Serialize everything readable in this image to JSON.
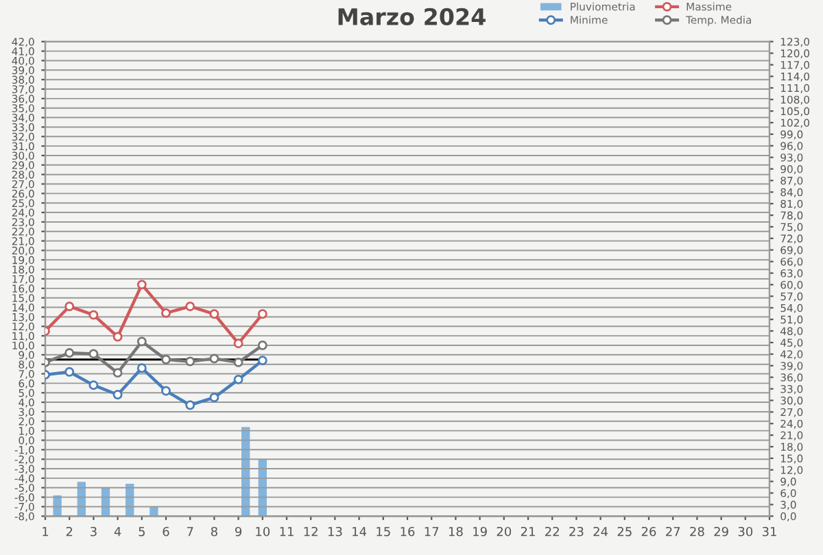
{
  "chart_data": {
    "type": "line",
    "title": "Marzo 2024",
    "x": [
      1,
      2,
      3,
      4,
      5,
      6,
      7,
      8,
      9,
      10
    ],
    "series": [
      {
        "name": "Pluviometria",
        "type": "bar",
        "axis": "y2",
        "color": "#6fa8d8",
        "x": [
          1.5,
          2.5,
          3.5,
          4.5,
          5.5,
          8.1,
          9.3,
          10
        ],
        "values": [
          5.4,
          8.9,
          7.4,
          8.4,
          2.5,
          0.2,
          23.1,
          14.8
        ]
      },
      {
        "name": "Minime",
        "color": "#4a7ebb",
        "values": [
          6.9,
          7.2,
          5.8,
          4.8,
          7.6,
          5.2,
          3.7,
          4.5,
          6.4,
          8.4
        ]
      },
      {
        "name": "Massime",
        "color": "#d05a5a",
        "values": [
          11.5,
          14.1,
          13.2,
          10.9,
          16.4,
          13.4,
          14.1,
          13.3,
          10.2,
          13.3
        ]
      },
      {
        "name": "Temp. Media",
        "color": "#777777",
        "values": [
          8.2,
          9.2,
          9.1,
          7.1,
          10.4,
          8.5,
          8.3,
          8.6,
          8.2,
          10.0
        ]
      }
    ],
    "ref_lines": [
      {
        "axis": "y",
        "value": 8.5,
        "color": "#000000"
      }
    ],
    "marker": "circle",
    "line_style": "solid",
    "grid": "y",
    "legend": "top right",
    "xlim": [
      1,
      31
    ],
    "xticks": [
      1,
      2,
      3,
      4,
      5,
      6,
      7,
      8,
      9,
      10,
      11,
      12,
      13,
      14,
      15,
      16,
      17,
      18,
      19,
      20,
      21,
      22,
      23,
      24,
      25,
      26,
      27,
      28,
      29,
      30,
      31
    ],
    "ylim": [
      -8,
      42
    ],
    "yticks": [
      {
        "value": -8,
        "label": "-8,0"
      },
      {
        "value": -7,
        "label": "-7,0"
      },
      {
        "value": -6,
        "label": "-6,0"
      },
      {
        "value": -5,
        "label": "-5,0"
      },
      {
        "value": -4,
        "label": "-4,0"
      },
      {
        "value": -3,
        "label": "-3,0"
      },
      {
        "value": -2,
        "label": "-2,0"
      },
      {
        "value": -1,
        "label": "-1,0"
      },
      {
        "value": 0,
        "label": "0,0"
      },
      {
        "value": 1,
        "label": "1,0"
      },
      {
        "value": 2,
        "label": "2,0"
      },
      {
        "value": 3,
        "label": "3,0"
      },
      {
        "value": 4,
        "label": "4,0"
      },
      {
        "value": 5,
        "label": "5,0"
      },
      {
        "value": 6,
        "label": "6,0"
      },
      {
        "value": 7,
        "label": "7,0"
      },
      {
        "value": 8,
        "label": "8,0"
      },
      {
        "value": 9,
        "label": "9,0"
      },
      {
        "value": 10,
        "label": "10,0"
      },
      {
        "value": 11,
        "label": "11,0"
      },
      {
        "value": 12,
        "label": "12,0"
      },
      {
        "value": 13,
        "label": "13,0"
      },
      {
        "value": 14,
        "label": "14,0"
      },
      {
        "value": 15,
        "label": "15,0"
      },
      {
        "value": 16,
        "label": "16,0"
      },
      {
        "value": 17,
        "label": "17,0"
      },
      {
        "value": 18,
        "label": "18,0"
      },
      {
        "value": 19,
        "label": "19,0"
      },
      {
        "value": 20,
        "label": "20,0"
      },
      {
        "value": 21,
        "label": "21,0"
      },
      {
        "value": 22,
        "label": "22,0"
      },
      {
        "value": 23,
        "label": "23,0"
      },
      {
        "value": 24,
        "label": "24,0"
      },
      {
        "value": 25,
        "label": "25,0"
      },
      {
        "value": 26,
        "label": "26,0"
      },
      {
        "value": 27,
        "label": "27,0"
      },
      {
        "value": 28,
        "label": "28,0"
      },
      {
        "value": 29,
        "label": "29,0"
      },
      {
        "value": 30,
        "label": "30,0"
      },
      {
        "value": 31,
        "label": "31,0"
      },
      {
        "value": 32,
        "label": "32,0"
      },
      {
        "value": 33,
        "label": "33,0"
      },
      {
        "value": 34,
        "label": "34,0"
      },
      {
        "value": 35,
        "label": "35,0"
      },
      {
        "value": 36,
        "label": "36,0"
      },
      {
        "value": 37,
        "label": "37,0"
      },
      {
        "value": 38,
        "label": "38,0"
      },
      {
        "value": 39,
        "label": "39,0"
      },
      {
        "value": 40,
        "label": "40,0"
      },
      {
        "value": 41,
        "label": "41,0"
      },
      {
        "value": 42,
        "label": "42,0"
      }
    ],
    "y2lim": [
      0,
      123
    ],
    "y2ticks": [
      {
        "value": 0,
        "label": "0,0"
      },
      {
        "value": 3,
        "label": "3,0"
      },
      {
        "value": 6,
        "label": "6,0"
      },
      {
        "value": 9,
        "label": "9,0"
      },
      {
        "value": 12,
        "label": "12,0"
      },
      {
        "value": 15,
        "label": "15,0"
      },
      {
        "value": 18,
        "label": "18,0"
      },
      {
        "value": 21,
        "label": "21,0"
      },
      {
        "value": 24,
        "label": "24,0"
      },
      {
        "value": 27,
        "label": "27,0"
      },
      {
        "value": 30,
        "label": "30,0"
      },
      {
        "value": 33,
        "label": "33,0"
      },
      {
        "value": 36,
        "label": "36,0"
      },
      {
        "value": 39,
        "label": "39,0"
      },
      {
        "value": 42,
        "label": "42,0"
      },
      {
        "value": 45,
        "label": "45,0"
      },
      {
        "value": 48,
        "label": "48,0"
      },
      {
        "value": 51,
        "label": "51,0"
      },
      {
        "value": 54,
        "label": "54,0"
      },
      {
        "value": 57,
        "label": "57,0"
      },
      {
        "value": 60,
        "label": "60,0"
      },
      {
        "value": 63,
        "label": "63,0"
      },
      {
        "value": 66,
        "label": "66,0"
      },
      {
        "value": 69,
        "label": "69,0"
      },
      {
        "value": 72,
        "label": "72,0"
      },
      {
        "value": 75,
        "label": "75,0"
      },
      {
        "value": 78,
        "label": "78,0"
      },
      {
        "value": 81,
        "label": "81,0"
      },
      {
        "value": 84,
        "label": "84,0"
      },
      {
        "value": 87,
        "label": "87,0"
      },
      {
        "value": 90,
        "label": "90,0"
      },
      {
        "value": 93,
        "label": "93,0"
      },
      {
        "value": 96,
        "label": "96,0"
      },
      {
        "value": 99,
        "label": "99,0"
      },
      {
        "value": 102,
        "label": "102,0"
      },
      {
        "value": 105,
        "label": "105,0"
      },
      {
        "value": 108,
        "label": "108,0"
      },
      {
        "value": 111,
        "label": "111,0"
      },
      {
        "value": 114,
        "label": "114,0"
      },
      {
        "value": 117,
        "label": "117,0"
      },
      {
        "value": 120,
        "label": "120,0"
      },
      {
        "value": 123,
        "label": "123,0"
      }
    ]
  }
}
